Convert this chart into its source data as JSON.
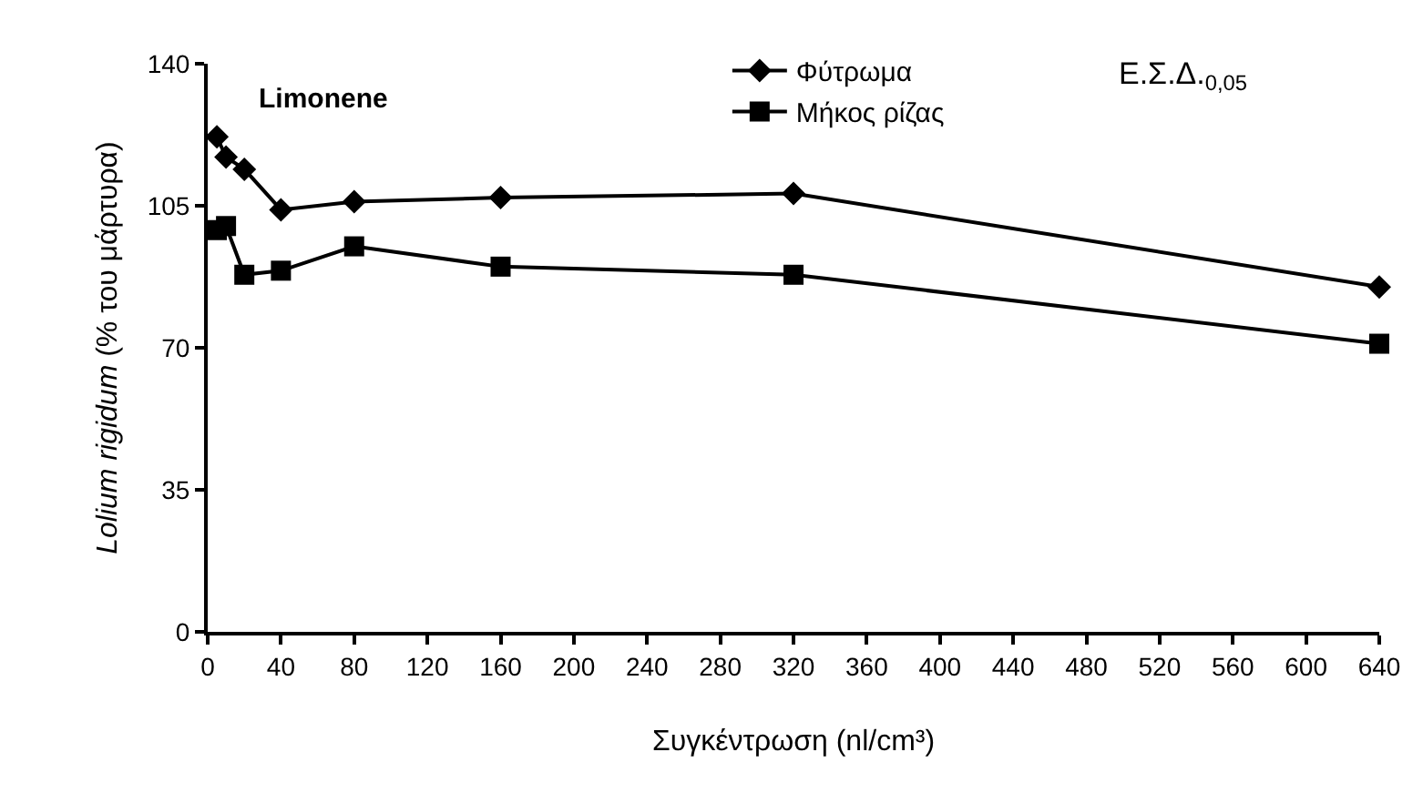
{
  "chart_data": {
    "type": "line",
    "xlabel": "Συγκέντρωση (nl/cm³)",
    "ylabel": "Lolium rigidum (% του μάρτυρα)",
    "x": [
      5,
      10,
      20,
      40,
      80,
      160,
      320,
      640
    ],
    "series": [
      {
        "name": "Φύτρωμα",
        "color": "#000000",
        "marker": "diamond",
        "values": [
          122,
          117,
          114,
          104,
          106,
          107,
          108,
          85
        ]
      },
      {
        "name": "Μήκος ρίζας",
        "color": "#000000",
        "marker": "square",
        "values": [
          99,
          100,
          88,
          89,
          95,
          90,
          88,
          71
        ]
      }
    ],
    "xlim": [
      0,
      640
    ],
    "xticks": [
      0,
      40,
      80,
      120,
      160,
      200,
      240,
      280,
      320,
      360,
      400,
      440,
      480,
      520,
      560,
      600,
      640
    ],
    "ylim": [
      0,
      140
    ],
    "yticks": [
      0,
      35,
      70,
      105,
      140
    ],
    "legend": "top right",
    "line_style": "solid",
    "annotations": [
      "Limonene",
      "Ε.Σ.Δ.$_{0,05}$"
    ]
  }
}
